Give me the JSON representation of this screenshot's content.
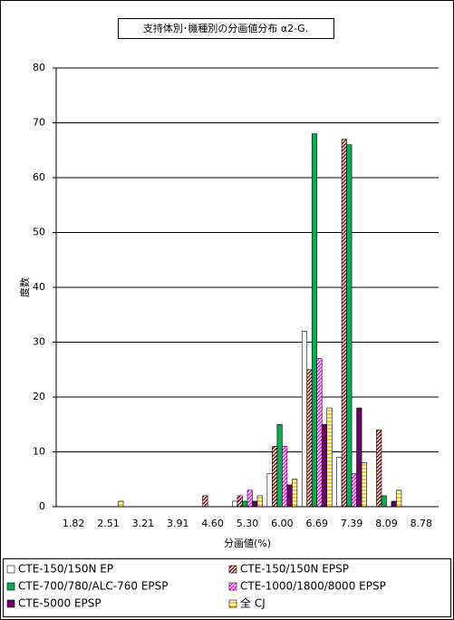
{
  "chart_data": {
    "type": "bar",
    "title": "支持体別･機種別の分画値分布 α2-G.",
    "y_label": "度数",
    "x_label": "分画値(%)",
    "categories": [
      "1.82",
      "2.51",
      "3.21",
      "3.91",
      "4.60",
      "5.30",
      "6.00",
      "6.69",
      "7.39",
      "8.09",
      "8.78"
    ],
    "series": [
      {
        "name": "CTE-150/150N EP",
        "color": "#ffffff",
        "values": [
          0,
          0,
          0,
          0,
          0,
          1,
          6,
          32,
          9,
          0,
          0
        ]
      },
      {
        "name": "CTE-150/150N EPSP",
        "color": "#800000",
        "pattern": "diagonal",
        "values": [
          0,
          0,
          0,
          0,
          2,
          2,
          11,
          25,
          67,
          14,
          0
        ]
      },
      {
        "name": "CTE-700/780/ALC-760 EPSP",
        "color": "#00b050",
        "values": [
          0,
          0,
          0,
          0,
          0,
          1,
          15,
          68,
          66,
          2,
          0
        ]
      },
      {
        "name": "CTE-1000/1800/8000 EPSP",
        "color": "#ff00ff",
        "pattern": "diagonal",
        "values": [
          0,
          0,
          0,
          0,
          0,
          3,
          11,
          27,
          6,
          0,
          0
        ]
      },
      {
        "name": "CTE-5000 EPSP",
        "color": "#660066",
        "values": [
          0,
          0,
          0,
          0,
          0,
          1,
          4,
          15,
          18,
          1,
          0
        ]
      },
      {
        "name": "全 CJ",
        "color": "#ffcc00",
        "pattern": "horizontal",
        "values": [
          0,
          1,
          0,
          0,
          0,
          2,
          5,
          18,
          8,
          3,
          0
        ]
      }
    ],
    "ylim": [
      0,
      80
    ],
    "yticks": [
      0,
      10,
      20,
      30,
      40,
      50,
      60,
      70,
      80
    ],
    "grid": true
  }
}
